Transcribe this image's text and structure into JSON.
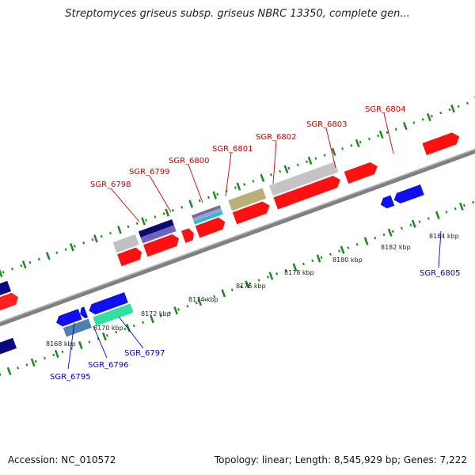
{
  "title": "Streptomyces griseus subsp. griseus NBRC 13350, complete gen...",
  "footer": {
    "accession": "Accession: NC_010572",
    "summary": "Topology: linear; Length: 8,545,929 bp; Genes: 7,222"
  },
  "colors": {
    "forward_gene": "#ff0000",
    "reverse_gene": "#1010ee",
    "backbone": "#808080",
    "tick": "#1a8a1a",
    "label_forward": "#cc0000",
    "label_reverse": "#0000cc"
  },
  "axis": {
    "ticks": [
      {
        "kbp": 8168,
        "label": "8168 kbp"
      },
      {
        "kbp": 8170,
        "label": "8170 kbp"
      },
      {
        "kbp": 8172,
        "label": "8172 kbp"
      },
      {
        "kbp": 8174,
        "label": "8174 kbp"
      },
      {
        "kbp": 8176,
        "label": "8176 kbp"
      },
      {
        "kbp": 8178,
        "label": "8178 kbp"
      },
      {
        "kbp": 8180,
        "label": "8180 kbp"
      },
      {
        "kbp": 8182,
        "label": "8182 kbp"
      },
      {
        "kbp": 8184,
        "label": "8184 kbp"
      }
    ]
  },
  "genes": [
    {
      "id": "SGR_6795",
      "strand": "reverse"
    },
    {
      "id": "SGR_6796",
      "strand": "reverse"
    },
    {
      "id": "SGR_6797",
      "strand": "reverse"
    },
    {
      "id": "SGR_6798",
      "strand": "forward"
    },
    {
      "id": "SGR_6799",
      "strand": "forward"
    },
    {
      "id": "SGR_6800",
      "strand": "forward"
    },
    {
      "id": "SGR_6801",
      "strand": "forward"
    },
    {
      "id": "SGR_6802",
      "strand": "forward"
    },
    {
      "id": "SGR_6803",
      "strand": "forward"
    },
    {
      "id": "SGR_6804",
      "strand": "forward"
    },
    {
      "id": "SGR_6805",
      "strand": "reverse"
    }
  ]
}
